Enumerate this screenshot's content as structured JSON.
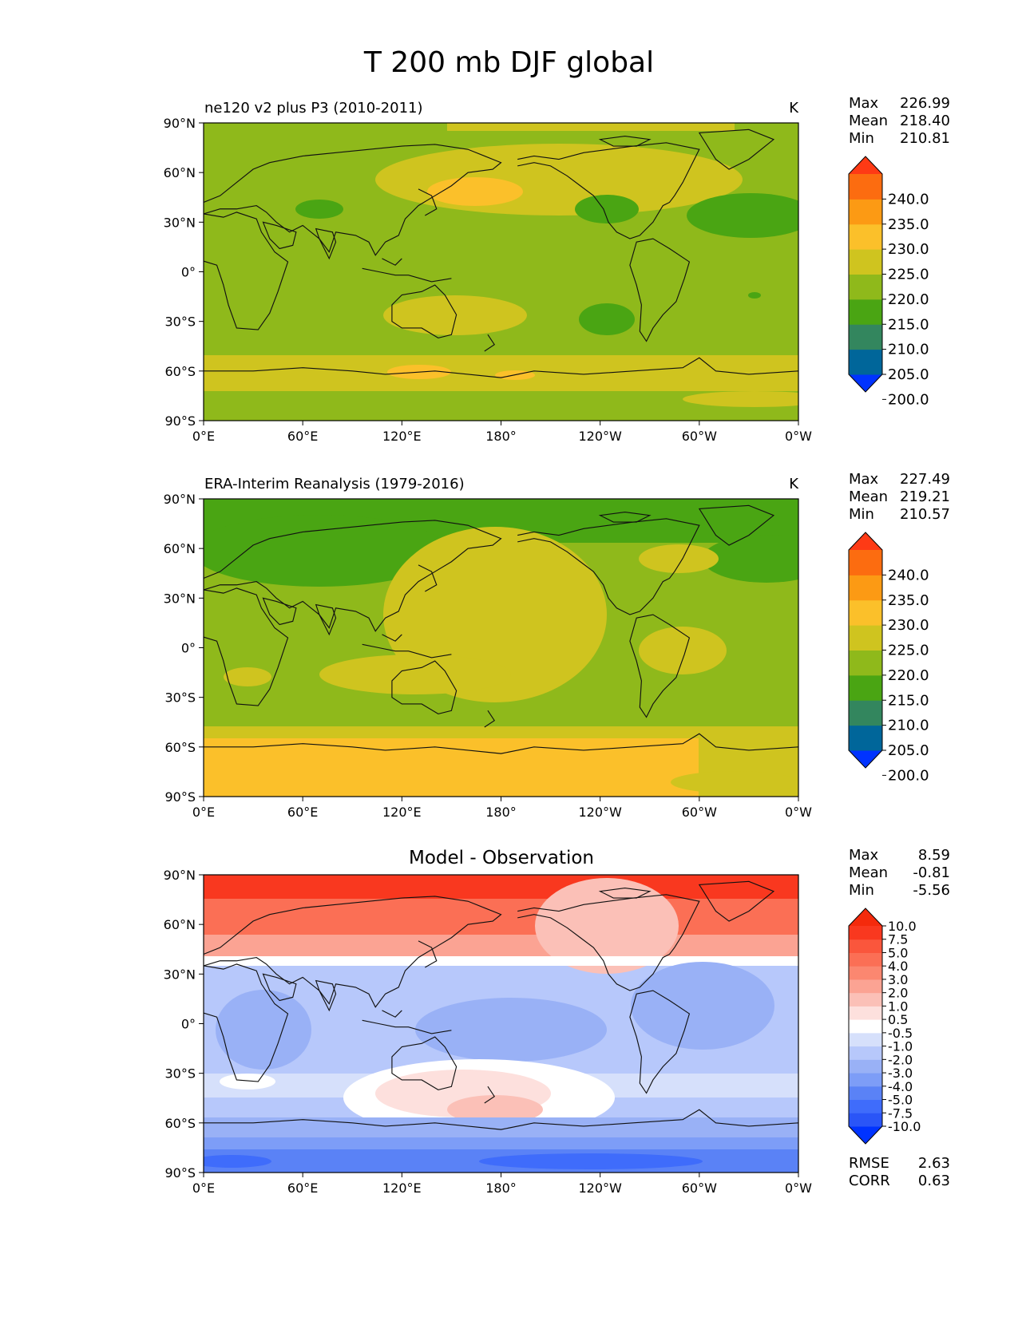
{
  "figure": {
    "title": "T 200 mb DJF global"
  },
  "axes": {
    "lat_ticks": [
      "90°N",
      "60°N",
      "30°N",
      "0°",
      "30°S",
      "60°S",
      "90°S"
    ],
    "lon_ticks": [
      "0°E",
      "60°E",
      "120°E",
      "180°",
      "120°W",
      "60°W",
      "0°W"
    ]
  },
  "stats_labels": {
    "max": "Max",
    "mean": "Mean",
    "min": "Min",
    "rmse": "RMSE",
    "corr": "CORR"
  },
  "panels": [
    {
      "id": "test",
      "title": "ne120 v2 plus P3 (2010-2011)",
      "units": "K",
      "stats": {
        "max": "226.99",
        "mean": "218.40",
        "min": "210.81"
      },
      "colorbar_labels": [
        "240.0",
        "235.0",
        "230.0",
        "225.0",
        "220.0",
        "215.0",
        "210.0",
        "205.0",
        "200.0"
      ]
    },
    {
      "id": "ref",
      "title": "ERA-Interim Reanalysis (1979-2016)",
      "units": "K",
      "stats": {
        "max": "227.49",
        "mean": "219.21",
        "min": "210.57"
      },
      "colorbar_labels": [
        "240.0",
        "235.0",
        "230.0",
        "225.0",
        "220.0",
        "215.0",
        "210.0",
        "205.0",
        "200.0"
      ]
    },
    {
      "id": "diff",
      "title": "Model - Observation",
      "units": "",
      "stats": {
        "max": "8.59",
        "mean": "-0.81",
        "min": "-5.56"
      },
      "metrics": {
        "rmse": "2.63",
        "corr": "0.63"
      },
      "colorbar_labels": [
        "10.0",
        "7.5",
        "5.0",
        "4.0",
        "3.0",
        "2.0",
        "1.0",
        "0.5",
        "-0.5",
        "-1.0",
        "-2.0",
        "-3.0",
        "-4.0",
        "-5.0",
        "-7.5",
        "-10.0"
      ]
    }
  ],
  "colors": {
    "temp_scale": [
      "#0033ff",
      "#00669a",
      "#33865e",
      "#4aa513",
      "#8fb91b",
      "#cfc41f",
      "#fbc02a",
      "#fc9a14",
      "#fc6c10",
      "#fe3a15"
    ],
    "diff_scale": [
      "#0033ff",
      "#2a55f7",
      "#3f6cfb",
      "#5a82f6",
      "#7d9df7",
      "#99b1f6",
      "#b7c8fb",
      "#d6e0fb",
      "#ffffff",
      "#fde0dd",
      "#fbc0b7",
      "#fba393",
      "#fb8770",
      "#fb6f55",
      "#fa563c",
      "#f9381f",
      "#f42a0c"
    ]
  }
}
